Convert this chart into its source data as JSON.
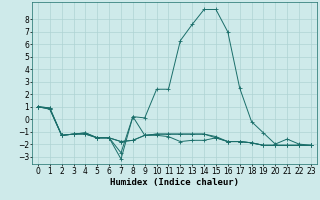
{
  "xlabel": "Humidex (Indice chaleur)",
  "background_color": "#ceeaea",
  "grid_color": "#afd4d4",
  "line_color": "#1a6e6a",
  "x_values": [
    0,
    1,
    2,
    3,
    4,
    5,
    6,
    7,
    8,
    9,
    10,
    11,
    12,
    13,
    14,
    15,
    16,
    17,
    18,
    19,
    20,
    21,
    22,
    23
  ],
  "series": [
    [
      1.0,
      0.8,
      -1.3,
      -1.2,
      -1.2,
      -1.5,
      -1.5,
      -3.2,
      0.2,
      -1.3,
      -1.3,
      -1.4,
      -1.8,
      -1.7,
      -1.7,
      -1.5,
      -1.8,
      -1.8,
      -1.9,
      -2.1,
      -2.1,
      -2.1,
      -2.1,
      -2.1
    ],
    [
      1.0,
      0.8,
      -1.3,
      -1.2,
      -1.2,
      -1.5,
      -1.5,
      -2.7,
      0.2,
      0.1,
      2.4,
      2.4,
      6.3,
      7.6,
      8.8,
      8.8,
      7.0,
      2.5,
      -0.2,
      -1.1,
      -2.0,
      -1.6,
      -2.0,
      -2.1
    ],
    [
      1.0,
      0.9,
      -1.3,
      -1.2,
      -1.1,
      -1.5,
      -1.5,
      -1.8,
      -1.7,
      -1.3,
      -1.2,
      -1.2,
      -1.2,
      -1.2,
      -1.2,
      -1.4,
      -1.8,
      -1.8,
      -1.9,
      -2.1,
      -2.1,
      -2.1,
      -2.1,
      -2.1
    ],
    [
      1.0,
      0.9,
      -1.3,
      -1.2,
      -1.1,
      -1.5,
      -1.5,
      -1.8,
      -1.7,
      -1.3,
      -1.2,
      -1.2,
      -1.2,
      -1.2,
      -1.2,
      -1.5,
      -1.8,
      -1.8,
      -1.9,
      -2.1,
      -2.1,
      -2.1,
      -2.1,
      -2.1
    ]
  ],
  "ylim": [
    -3.6,
    9.4
  ],
  "yticks": [
    -3,
    -2,
    -1,
    0,
    1,
    2,
    3,
    4,
    5,
    6,
    7,
    8
  ],
  "xticks": [
    0,
    1,
    2,
    3,
    4,
    5,
    6,
    7,
    8,
    9,
    10,
    11,
    12,
    13,
    14,
    15,
    16,
    17,
    18,
    19,
    20,
    21,
    22,
    23
  ],
  "xlabel_fontsize": 6.5,
  "tick_fontsize": 5.5
}
